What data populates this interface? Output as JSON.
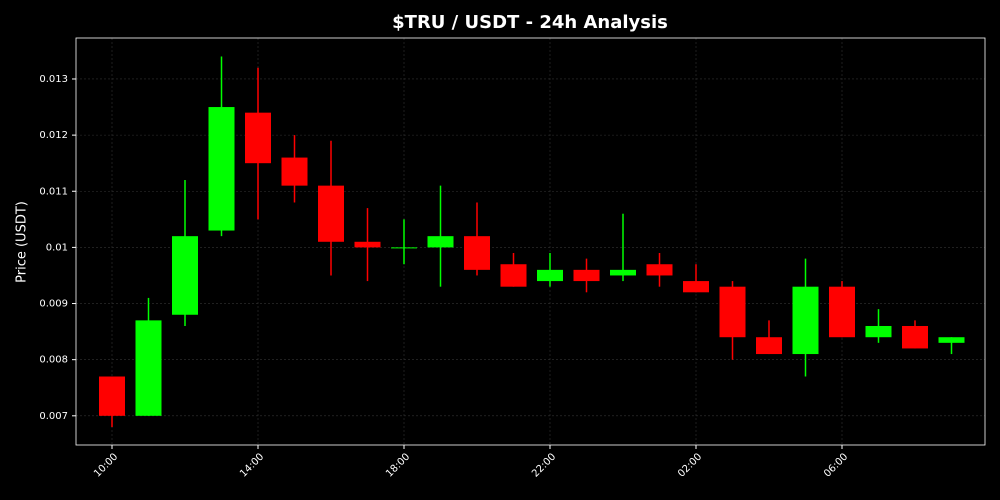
{
  "chart_data": {
    "type": "candlestick",
    "title": "$TRU / USDT - 24h Analysis",
    "y_label": "Price (USDT)",
    "categories": [
      "10:00",
      null,
      null,
      null,
      "14:00",
      null,
      null,
      null,
      "18:00",
      null,
      null,
      null,
      "22:00",
      null,
      null,
      null,
      "02:00",
      null,
      null,
      null,
      "06:00",
      null,
      null,
      null
    ],
    "open": [
      0.0077,
      0.007,
      0.0088,
      0.0103,
      0.0124,
      0.0116,
      0.0111,
      0.0101,
      0.01,
      0.01,
      0.0102,
      0.0097,
      0.0094,
      0.0096,
      0.0095,
      0.0097,
      0.0094,
      0.0093,
      0.0084,
      0.0081,
      0.0093,
      0.0084,
      0.0086,
      0.0083
    ],
    "high": [
      0.0077,
      0.0091,
      0.0112,
      0.0134,
      0.0132,
      0.012,
      0.0119,
      0.0107,
      0.0105,
      0.0111,
      0.0108,
      0.0099,
      0.0099,
      0.0098,
      0.0106,
      0.0099,
      0.0097,
      0.0094,
      0.0087,
      0.0098,
      0.0094,
      0.0089,
      0.0087,
      0.0084
    ],
    "low": [
      0.0068,
      0.007,
      0.0086,
      0.0102,
      0.0105,
      0.0108,
      0.0095,
      0.0094,
      0.0097,
      0.0093,
      0.0095,
      0.0093,
      0.0093,
      0.0092,
      0.0094,
      0.0093,
      0.0092,
      0.008,
      0.0081,
      0.0077,
      0.0084,
      0.0083,
      0.0082,
      0.0081
    ],
    "close": [
      0.007,
      0.0087,
      0.0102,
      0.0125,
      0.0115,
      0.0111,
      0.0101,
      0.01,
      0.01,
      0.0102,
      0.0096,
      0.0093,
      0.0096,
      0.0094,
      0.0096,
      0.0095,
      0.0092,
      0.0084,
      0.0081,
      0.0093,
      0.0084,
      0.0086,
      0.0082,
      0.0084
    ],
    "up_color": "#00ff00",
    "down_color": "#ff0000",
    "ylim": [
      0.00648,
      0.01373
    ],
    "yticks": [
      0.007,
      0.008,
      0.009,
      0.01,
      0.011,
      0.012,
      0.013
    ],
    "grid": true
  }
}
